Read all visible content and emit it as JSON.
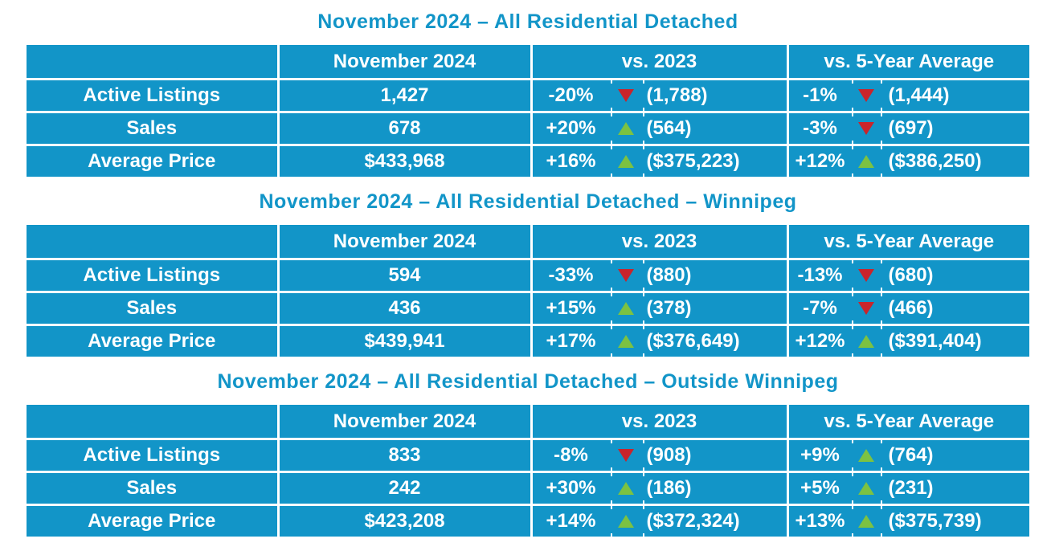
{
  "colors": {
    "table_blue": "#1295C8",
    "title_blue": "#1295C8",
    "up_green": "#7CC242",
    "down_red": "#C9242B",
    "text_white": "#FFFFFF",
    "page_bg": "#FFFFFF"
  },
  "chart_data": [
    {
      "type": "table",
      "title": "November 2024 – All Residential Detached",
      "columns": {
        "metric": "",
        "current": "November 2024",
        "vs2023": "vs. 2023",
        "vs5yr": "vs. 5-Year Average"
      },
      "rows": [
        {
          "label": "Active Listings",
          "current": "1,427",
          "vs2023": {
            "pct": "-20%",
            "dir": "down",
            "value": "(1,788)"
          },
          "vs5yr": {
            "pct": "-1%",
            "dir": "down",
            "value": "(1,444)"
          }
        },
        {
          "label": "Sales",
          "current": "678",
          "vs2023": {
            "pct": "+20%",
            "dir": "up",
            "value": "(564)"
          },
          "vs5yr": {
            "pct": "-3%",
            "dir": "down",
            "value": "(697)"
          }
        },
        {
          "label": "Average Price",
          "current": "$433,968",
          "vs2023": {
            "pct": "+16%",
            "dir": "up",
            "value": "($375,223)"
          },
          "vs5yr": {
            "pct": "+12%",
            "dir": "up",
            "value": "($386,250)"
          }
        }
      ]
    },
    {
      "type": "table",
      "title": "November 2024 – All Residential Detached – Winnipeg",
      "columns": {
        "metric": "",
        "current": "November 2024",
        "vs2023": "vs. 2023",
        "vs5yr": "vs. 5-Year Average"
      },
      "rows": [
        {
          "label": "Active Listings",
          "current": "594",
          "vs2023": {
            "pct": "-33%",
            "dir": "down",
            "value": "(880)"
          },
          "vs5yr": {
            "pct": "-13%",
            "dir": "down",
            "value": "(680)"
          }
        },
        {
          "label": "Sales",
          "current": "436",
          "vs2023": {
            "pct": "+15%",
            "dir": "up",
            "value": "(378)"
          },
          "vs5yr": {
            "pct": "-7%",
            "dir": "down",
            "value": "(466)"
          }
        },
        {
          "label": "Average Price",
          "current": "$439,941",
          "vs2023": {
            "pct": "+17%",
            "dir": "up",
            "value": "($376,649)"
          },
          "vs5yr": {
            "pct": "+12%",
            "dir": "up",
            "value": "($391,404)"
          }
        }
      ]
    },
    {
      "type": "table",
      "title": "November 2024 – All Residential Detached – Outside Winnipeg",
      "columns": {
        "metric": "",
        "current": "November 2024",
        "vs2023": "vs. 2023",
        "vs5yr": "vs. 5-Year Average"
      },
      "rows": [
        {
          "label": "Active Listings",
          "current": "833",
          "vs2023": {
            "pct": "-8%",
            "dir": "down",
            "value": "(908)"
          },
          "vs5yr": {
            "pct": "+9%",
            "dir": "up",
            "value": "(764)"
          }
        },
        {
          "label": "Sales",
          "current": "242",
          "vs2023": {
            "pct": "+30%",
            "dir": "up",
            "value": "(186)"
          },
          "vs5yr": {
            "pct": "+5%",
            "dir": "up",
            "value": "(231)"
          }
        },
        {
          "label": "Average Price",
          "current": "$423,208",
          "vs2023": {
            "pct": "+14%",
            "dir": "up",
            "value": "($372,324)"
          },
          "vs5yr": {
            "pct": "+13%",
            "dir": "up",
            "value": "($375,739)"
          }
        }
      ]
    }
  ]
}
